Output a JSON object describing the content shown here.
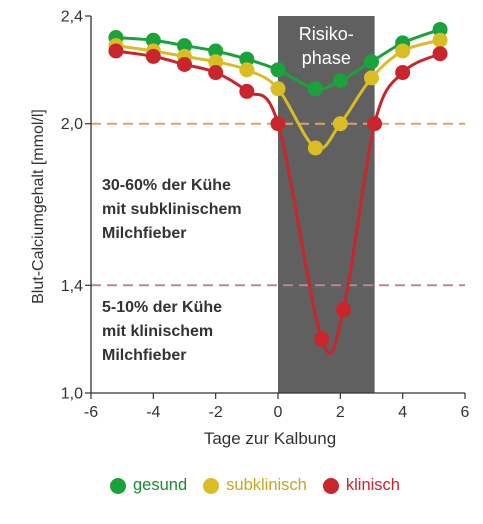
{
  "chart_data": {
    "type": "line",
    "xlabel": "Tage zur Kalbung",
    "ylabel": "Blut-Calciumgehalt [mmol/l]",
    "xlim": [
      -6,
      6
    ],
    "ylim": [
      1.0,
      2.4
    ],
    "x_ticks": [
      -6,
      -4,
      -2,
      0,
      2,
      4,
      6
    ],
    "x_tick_labels": [
      "-6",
      "-4",
      "-2",
      "0",
      "2",
      "4",
      "6"
    ],
    "y_ticks": [
      1.0,
      1.4,
      2.0,
      2.4
    ],
    "y_tick_labels": [
      "1,0",
      "1,4",
      "2,0",
      "2,4"
    ],
    "risk_phase": {
      "label_line1": "Risiko-",
      "label_line2": "phase",
      "x_start": 0,
      "x_end": 3.1,
      "color": "#606060"
    },
    "thresholds": [
      {
        "y": 2.0,
        "color": "#d9a45e"
      },
      {
        "y": 1.4,
        "color": "#b58a8a"
      }
    ],
    "annotations": [
      {
        "lines": [
          "30-60% der Kühe",
          "mit subklinischem",
          "Milchfieber"
        ]
      },
      {
        "lines": [
          "5-10% der Kühe",
          "mit klinischem",
          "Milchfieber"
        ]
      }
    ],
    "series": [
      {
        "name": "gesund",
        "color": "#1aa33a",
        "x": [
          -5.2,
          -4,
          -3,
          -2,
          -1,
          0,
          1.2,
          2,
          3,
          4,
          5.2
        ],
        "y": [
          2.32,
          2.31,
          2.29,
          2.27,
          2.24,
          2.2,
          2.13,
          2.16,
          2.23,
          2.3,
          2.35
        ]
      },
      {
        "name": "subklinisch",
        "color": "#d8bd25",
        "x": [
          -5.2,
          -4,
          -3,
          -2,
          -1,
          0,
          1.2,
          2,
          3,
          4,
          5.2
        ],
        "y": [
          2.29,
          2.27,
          2.25,
          2.23,
          2.2,
          2.13,
          1.91,
          2.0,
          2.17,
          2.27,
          2.31
        ]
      },
      {
        "name": "klinisch",
        "color": "#c9252c",
        "x": [
          -5.2,
          -4,
          -3,
          -2,
          -1,
          0,
          1.4,
          2.1,
          3.1,
          4,
          5.2
        ],
        "y": [
          2.27,
          2.25,
          2.22,
          2.19,
          2.12,
          2.0,
          1.2,
          1.31,
          2.0,
          2.19,
          2.26
        ]
      }
    ]
  },
  "legend": [
    {
      "label": "gesund",
      "color": "#1aa33a",
      "text_color": "#1a8a30"
    },
    {
      "label": "subklinisch",
      "color": "#d8bd25",
      "text_color": "#c9a81a"
    },
    {
      "label": "klinisch",
      "color": "#c9252c",
      "text_color": "#c9252c"
    }
  ]
}
